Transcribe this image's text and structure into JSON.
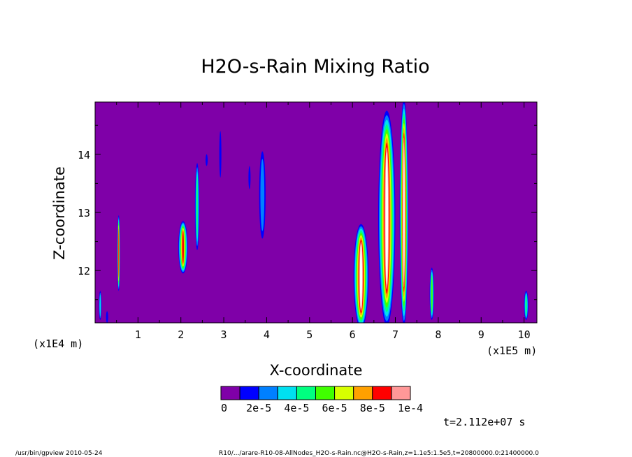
{
  "chart_data": {
    "type": "heatmap",
    "title": "H2O-s-Rain Mixing Ratio",
    "xlabel": "X-coordinate",
    "ylabel": "Z-coordinate",
    "x_scale_label": "(x1E5 m)",
    "y_scale_label": "(x1E4 m)",
    "xlim": [
      0,
      10.3
    ],
    "ylim": [
      11.1,
      14.9
    ],
    "x_ticks": [
      "1",
      "2",
      "3",
      "4",
      "5",
      "6",
      "7",
      "8",
      "9",
      "10"
    ],
    "y_ticks": [
      "12",
      "13",
      "14"
    ],
    "background_color": "#7f00a8",
    "color_levels": [
      {
        "color": "#7f00a8"
      },
      {
        "color": "#0000ff"
      },
      {
        "color": "#0080ff"
      },
      {
        "color": "#00e0f0"
      },
      {
        "color": "#00ff80"
      },
      {
        "color": "#40ff00"
      },
      {
        "color": "#d8ff00"
      },
      {
        "color": "#ffa000"
      },
      {
        "color": "#ff0000"
      },
      {
        "color": "#ff9898"
      },
      {
        "color": "#ffffff"
      }
    ],
    "colorbar_labels": [
      "0",
      "2e-5",
      "4e-5",
      "6e-5",
      "8e-5",
      "1e-4"
    ],
    "time_label": "t=2.112e+07 s",
    "features": [
      {
        "x": 0.12,
        "z": 11.4,
        "w": 0.06,
        "h": 0.5,
        "level": 3
      },
      {
        "x": 0.55,
        "z": 12.3,
        "w": 0.06,
        "h": 1.3,
        "level": 8
      },
      {
        "x": 0.28,
        "z": 11.2,
        "w": 0.03,
        "h": 0.2,
        "level": 1
      },
      {
        "x": 2.05,
        "z": 12.4,
        "w": 0.22,
        "h": 0.9,
        "level": 8
      },
      {
        "x": 2.38,
        "z": 13.1,
        "w": 0.1,
        "h": 1.5,
        "level": 4
      },
      {
        "x": 2.6,
        "z": 13.9,
        "w": 0.03,
        "h": 0.2,
        "level": 1
      },
      {
        "x": 2.92,
        "z": 14.0,
        "w": 0.04,
        "h": 0.8,
        "level": 1
      },
      {
        "x": 3.9,
        "z": 13.3,
        "w": 0.15,
        "h": 1.5,
        "level": 2
      },
      {
        "x": 3.6,
        "z": 13.6,
        "w": 0.03,
        "h": 0.4,
        "level": 1
      },
      {
        "x": 6.2,
        "z": 11.9,
        "w": 0.35,
        "h": 1.8,
        "level": 10
      },
      {
        "x": 6.8,
        "z": 12.9,
        "w": 0.4,
        "h": 3.7,
        "level": 10
      },
      {
        "x": 7.2,
        "z": 13.0,
        "w": 0.2,
        "h": 3.9,
        "level": 10
      },
      {
        "x": 7.85,
        "z": 11.6,
        "w": 0.1,
        "h": 0.9,
        "level": 5
      },
      {
        "x": 10.05,
        "z": 11.4,
        "w": 0.1,
        "h": 0.5,
        "level": 4
      }
    ]
  },
  "footer": {
    "left": "/usr/bin/gpview   2010-05-24",
    "right": "R10/.../arare-R10-08-AllNodes_H2O-s-Rain.nc@H2O-s-Rain,z=1.1e5:1.5e5,t=20800000.0:21400000.0"
  }
}
